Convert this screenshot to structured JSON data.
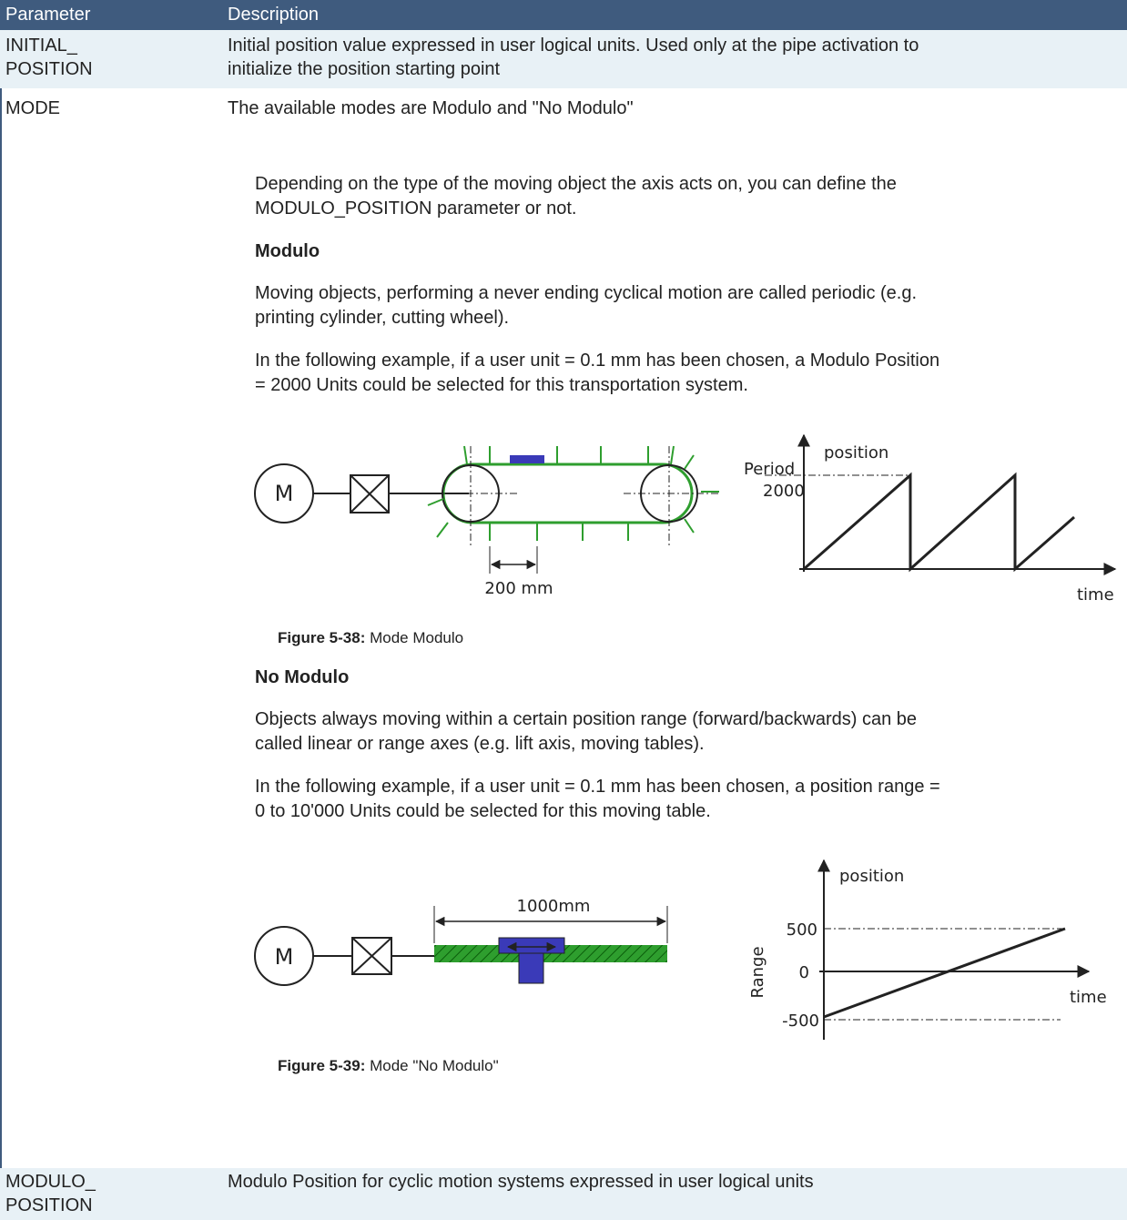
{
  "table": {
    "header": [
      "Parameter",
      "Description"
    ],
    "rows": [
      {
        "parameter": [
          "INITIAL_",
          "POSITION"
        ],
        "description": [
          "Initial position value expressed in user logical units. Used only at the pipe activation to",
          "initialize the position starting point"
        ]
      },
      {
        "parameter": [
          "MODE"
        ],
        "description": [
          "The available modes are Modulo and \"No Modulo\""
        ],
        "details": {
          "intro": [
            "Depending on the type of the moving object the axis acts on, you can define the",
            "MODULO_POSITION parameter or not."
          ],
          "modulo": {
            "heading": "Modulo",
            "paragraphs": [
              [
                "Moving objects, performing a never ending cyclical motion are called periodic (e.g.",
                "printing cylinder, cutting wheel)."
              ],
              [
                "In the following example, if a user unit = 0.1 mm has been chosen, a Modulo Position",
                "= 2000 Units could be selected for this transportation system."
              ]
            ],
            "figure": {
              "motor": "M",
              "dimension": "200 mm",
              "y_axis": "position",
              "period": "Period",
              "period_value": "2000",
              "x_axis": "time"
            },
            "caption": {
              "label": "Figure 5-38:",
              "text": "Mode Modulo"
            }
          },
          "no_modulo": {
            "heading": "No Modulo",
            "paragraphs": [
              [
                "Objects always moving within a certain position range (forward/backwards) can be",
                "called linear or range axes (e.g. lift axis, moving tables)."
              ],
              [
                "In the following example, if a user unit = 0.1 mm has been chosen, a position range =",
                "0 to 10'000 Units could be selected for this moving table."
              ]
            ],
            "figure": {
              "motor": "M",
              "dimension": "1000mm",
              "y_axis": "position",
              "range": "Range",
              "top": "500",
              "zero": "0",
              "bottom": "-500",
              "x_axis": "time"
            },
            "caption": {
              "label": "Figure 5-39:",
              "text": "Mode \"No Modulo\""
            }
          }
        }
      },
      {
        "parameter": [
          "MODULO_",
          "POSITION"
        ],
        "description": [
          "Modulo Position for cyclic motion systems expressed in user logical units"
        ]
      }
    ]
  }
}
